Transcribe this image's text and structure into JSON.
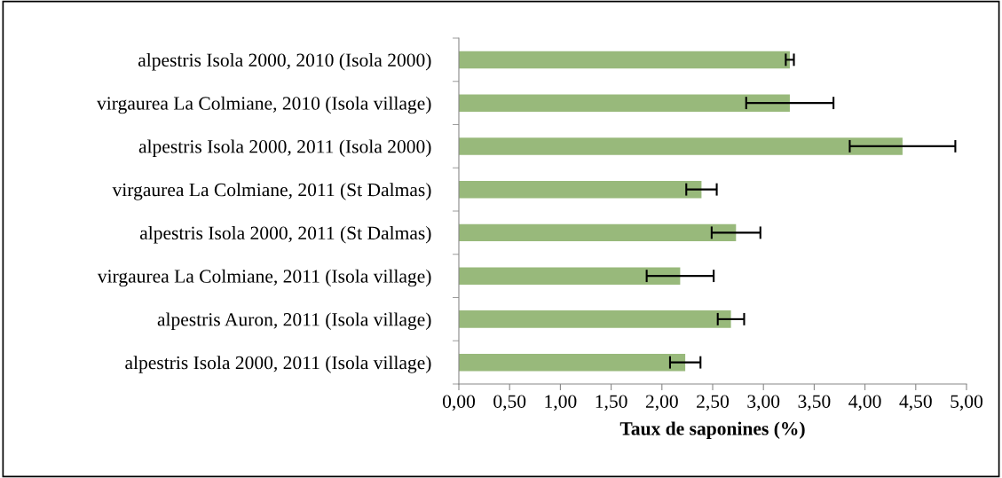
{
  "chart_data": {
    "type": "bar",
    "orientation": "horizontal",
    "xlabel": "Taux de saponines (%)",
    "categories": [
      "alpestris Isola 2000, 2010 (Isola 2000)",
      "virgaurea La Colmiane, 2010 (Isola village)",
      "alpestris Isola 2000, 2011 (Isola 2000)",
      "virgaurea La Colmiane, 2011 (St Dalmas)",
      "alpestris Isola 2000, 2011 (St Dalmas)",
      "virgaurea La Colmiane, 2011 (Isola village)",
      "alpestris Auron, 2011 (Isola village)",
      "alpestris Isola 2000, 2011 (Isola village)"
    ],
    "values": [
      3.26,
      3.26,
      4.37,
      2.39,
      2.73,
      2.18,
      2.68,
      2.23
    ],
    "errors": [
      0.04,
      0.43,
      0.52,
      0.15,
      0.24,
      0.33,
      0.13,
      0.15
    ],
    "color": "#98b97b",
    "xlim": [
      0,
      5
    ],
    "xticks": [
      {
        "value": 0,
        "label": "0,00"
      },
      {
        "value": 0.5,
        "label": "0,50"
      },
      {
        "value": 1,
        "label": "1,00"
      },
      {
        "value": 1.5,
        "label": "1,50"
      },
      {
        "value": 2,
        "label": "2,00"
      },
      {
        "value": 2.5,
        "label": "2,50"
      },
      {
        "value": 3,
        "label": "3,00"
      },
      {
        "value": 3.5,
        "label": "3,50"
      },
      {
        "value": 4,
        "label": "4,00"
      },
      {
        "value": 4.5,
        "label": "4,50"
      },
      {
        "value": 5,
        "label": "5,00"
      }
    ],
    "grid": false,
    "legend": false
  }
}
